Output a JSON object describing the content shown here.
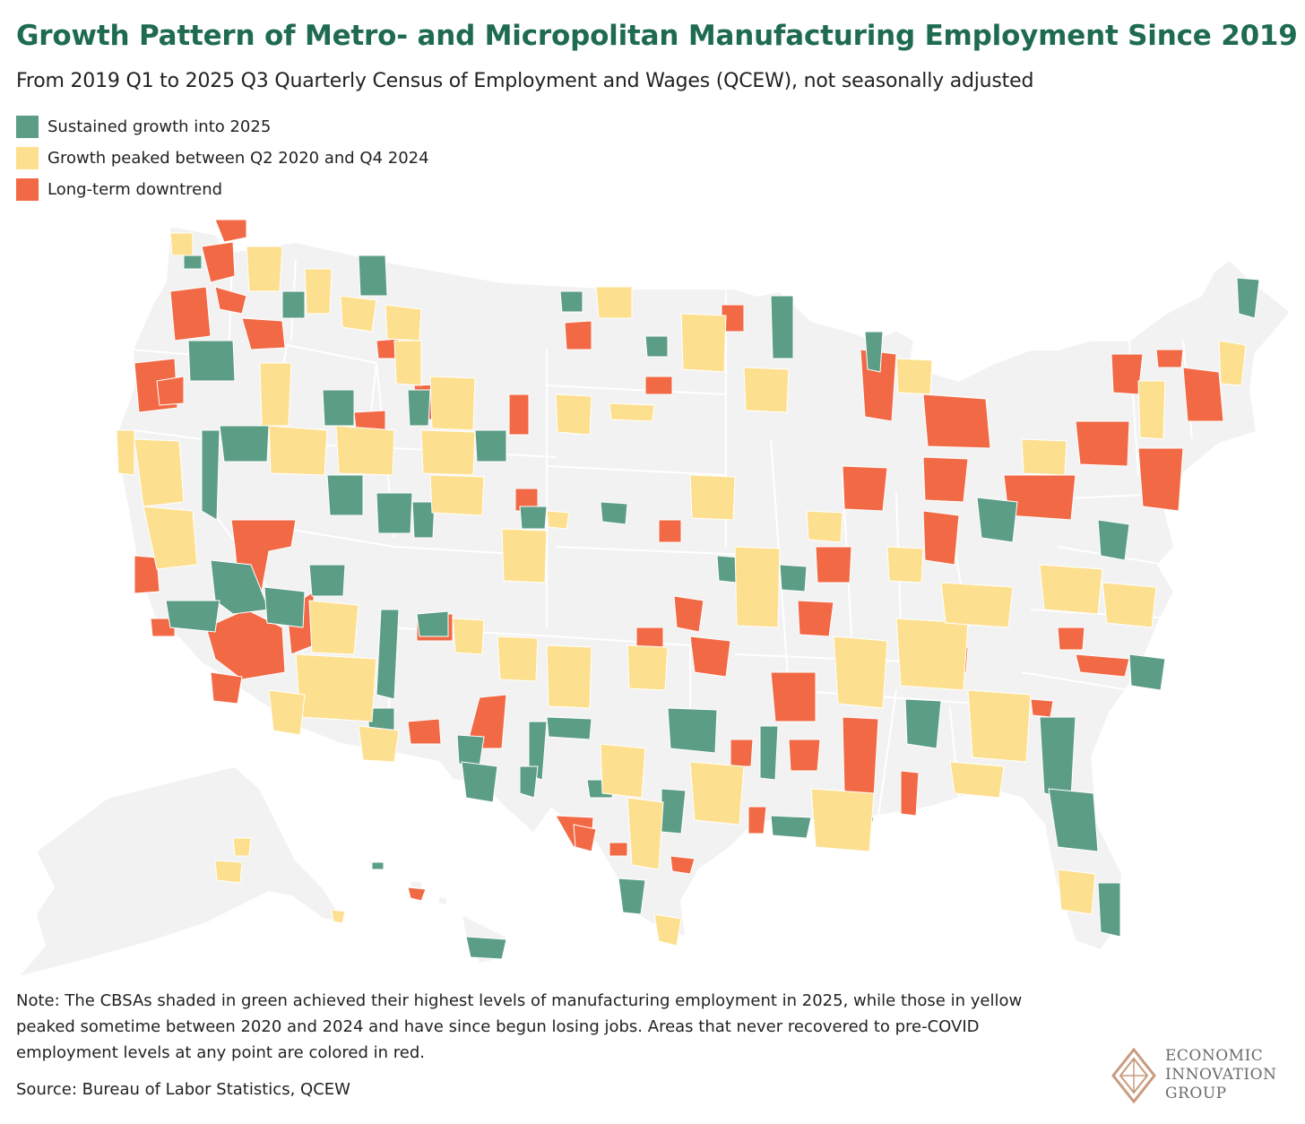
{
  "header": {
    "title": "Growth Pattern of Metro- and Micropolitan Manufacturing Employment Since 2019",
    "subtitle": "From 2019 Q1 to 2025 Q3 Quarterly Census of Employment and Wages (QCEW), not seasonally adjusted"
  },
  "legend": {
    "items": [
      {
        "label": "Sustained growth into 2025",
        "color": "#5c9d86"
      },
      {
        "label": "Growth peaked between Q2 2020 and Q4 2024",
        "color": "#fde08f"
      },
      {
        "label": "Long-term downtrend",
        "color": "#f26a45"
      }
    ]
  },
  "map": {
    "base_color": "#f2f2f2",
    "border_color": "#ffffff",
    "region_icon": "us-states-basemap"
  },
  "footer": {
    "note": "Note: The CBSAs shaded in green achieved their highest levels of manufacturing employment in 2025, while those in yellow peaked sometime between 2020 and 2024 and have since begun losing jobs. Areas that never recovered to pre-COVID employment levels at any point are colored in red.",
    "source": "Source: Bureau of Labor Statistics, QCEW"
  },
  "logo": {
    "line1": "ECONOMIC",
    "line2": "INNOVATION",
    "line3": "GROUP",
    "icon": "diamond-logo-icon",
    "color": "#c99b7e"
  }
}
